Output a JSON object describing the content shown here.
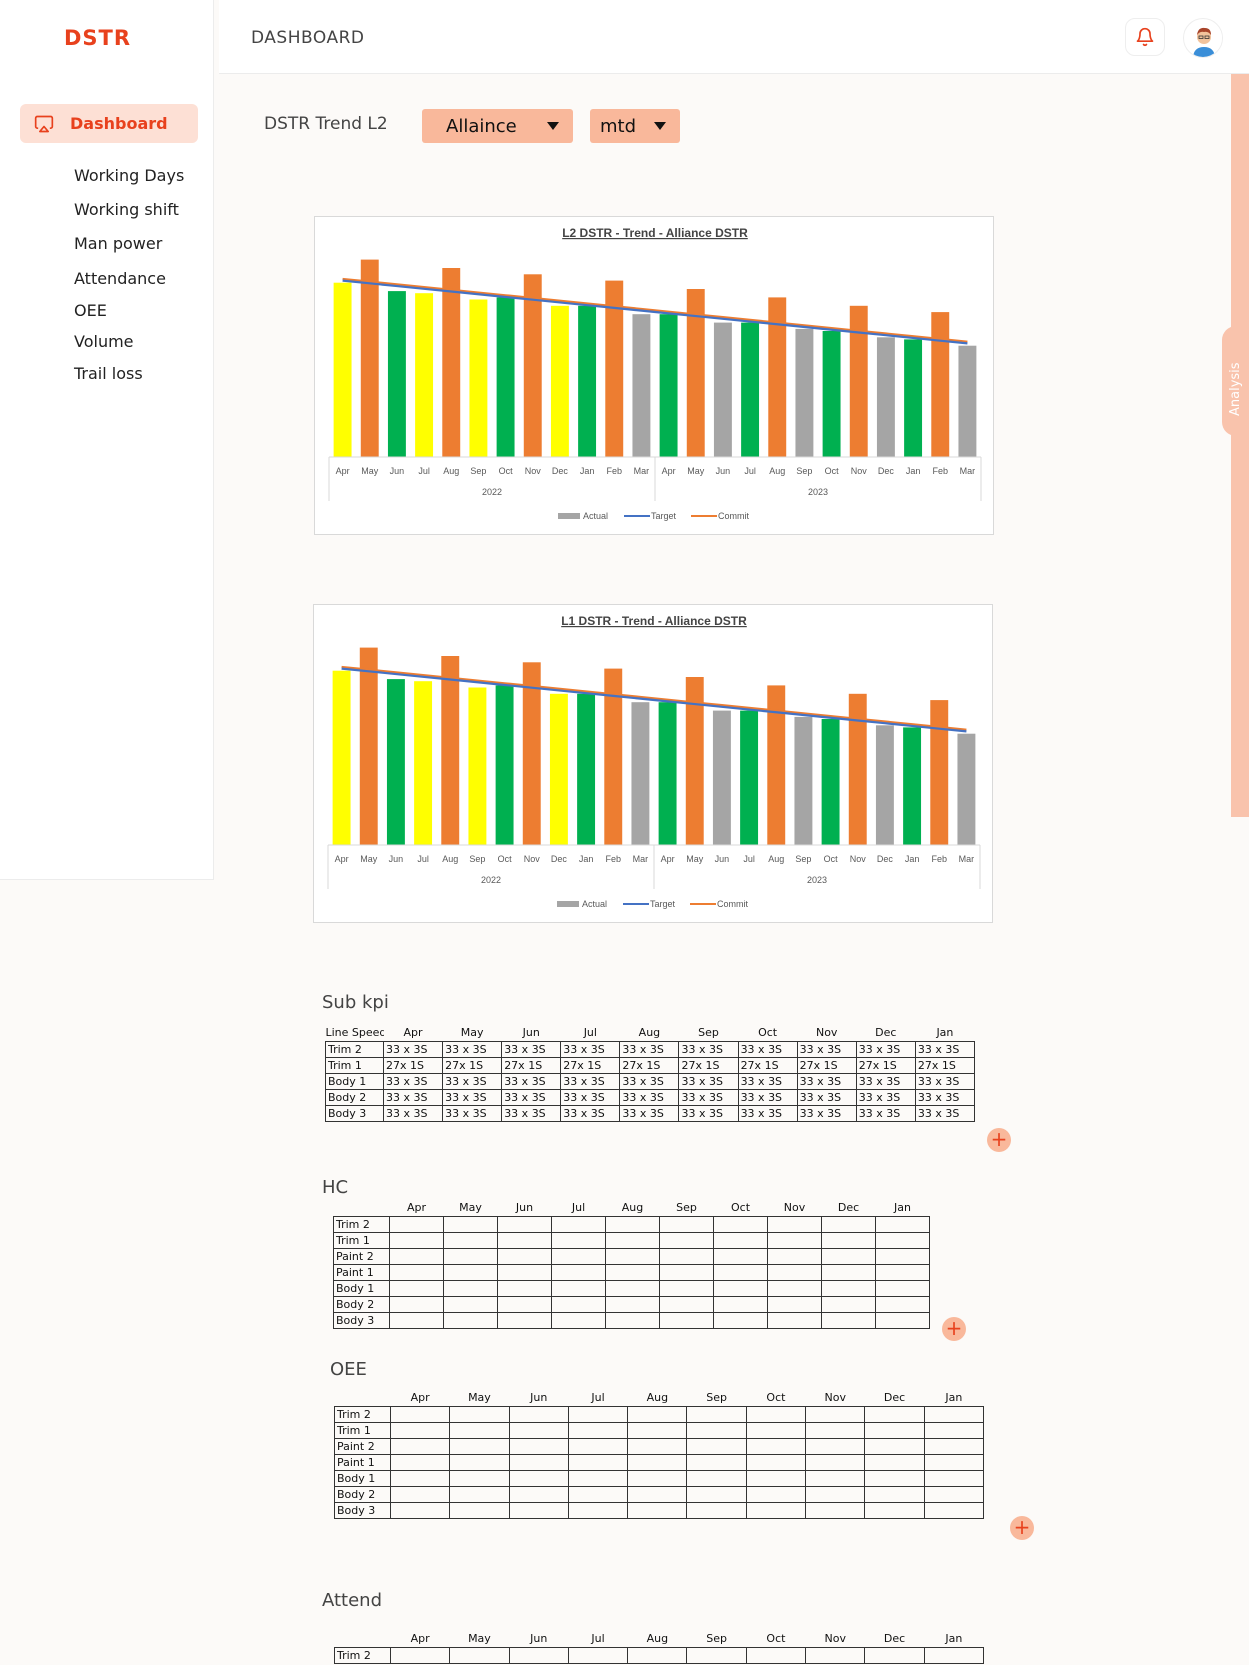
{
  "app": {
    "logo": "DSTR",
    "header_title": "DASHBOARD"
  },
  "sidebar": {
    "active": {
      "label": "Dashboard",
      "icon": "airplay-icon"
    },
    "items": [
      {
        "label": "Working Days"
      },
      {
        "label": "Working shift"
      },
      {
        "label": "Man power"
      },
      {
        "label": "Attendance"
      },
      {
        "label": "OEE"
      },
      {
        "label": "Volume"
      },
      {
        "label": "Trail loss"
      }
    ]
  },
  "analysis_tab": "Analysis",
  "filters": {
    "label": "DSTR Trend L2",
    "company": "Allaince",
    "period": "mtd"
  },
  "colors": {
    "accent": "#e8411d",
    "accent_light": "#f9b89b",
    "yellow": "#ffff00",
    "orange": "#ed7d31",
    "green": "#00b050",
    "gray": "#a5a5a5",
    "target": "#4472c4",
    "commit": "#ed7d31"
  },
  "chart_data": [
    {
      "type": "bar",
      "title": "L2 DSTR - Trend - Alliance DSTR",
      "years": [
        "2022",
        "2023"
      ],
      "categories": [
        "Apr",
        "May",
        "Jun",
        "Jul",
        "Aug",
        "Sep",
        "Oct",
        "Nov",
        "Dec",
        "Jan",
        "Feb",
        "Mar",
        "Apr",
        "May",
        "Jun",
        "Jul",
        "Aug",
        "Sep",
        "Oct",
        "Nov",
        "Dec",
        "Jan",
        "Feb",
        "Mar"
      ],
      "series": [
        {
          "name": "Actual",
          "values": [
            83,
            94,
            79,
            78,
            90,
            75,
            76,
            87,
            72,
            72,
            84,
            68,
            68,
            80,
            64,
            64,
            76,
            61,
            60,
            72,
            57,
            56,
            69,
            53
          ]
        },
        {
          "name": "Target",
          "values": [
            84,
            82.7,
            81.4,
            80.1,
            78.8,
            77.5,
            76.2,
            74.9,
            73.6,
            72.3,
            71,
            69.7,
            68.4,
            67.1,
            65.8,
            64.5,
            63.2,
            61.9,
            60.6,
            59.3,
            58,
            56.7,
            55.4,
            54.1
          ]
        },
        {
          "name": "Commit",
          "values": [
            84.8,
            83.5,
            82.2,
            80.9,
            79.6,
            78.3,
            77,
            75.7,
            74.4,
            73.1,
            71.8,
            70.5,
            69.2,
            67.9,
            66.6,
            65.3,
            64,
            62.7,
            61.4,
            60.1,
            58.8,
            57.5,
            56.2,
            54.9
          ]
        }
      ],
      "bar_colors": [
        "yellow",
        "orange",
        "green",
        "yellow",
        "orange",
        "yellow",
        "green",
        "orange",
        "yellow",
        "green",
        "orange",
        "gray",
        "green",
        "orange",
        "gray",
        "green",
        "orange",
        "gray",
        "green",
        "orange",
        "gray",
        "green",
        "orange",
        "gray"
      ],
      "ylim": [
        0,
        100
      ],
      "legend": [
        "Actual",
        "Target",
        "Commit"
      ],
      "legend_position": "bottom"
    },
    {
      "type": "bar",
      "title": "L1 DSTR - Trend - Alliance DSTR",
      "years": [
        "2022",
        "2023"
      ],
      "categories": [
        "Apr",
        "May",
        "Jun",
        "Jul",
        "Aug",
        "Sep",
        "Oct",
        "Nov",
        "Dec",
        "Jan",
        "Feb",
        "Mar",
        "Apr",
        "May",
        "Jun",
        "Jul",
        "Aug",
        "Sep",
        "Oct",
        "Nov",
        "Dec",
        "Jan",
        "Feb",
        "Mar"
      ],
      "series": [
        {
          "name": "Actual",
          "values": [
            83,
            94,
            79,
            78,
            90,
            75,
            76,
            87,
            72,
            72,
            84,
            68,
            68,
            80,
            64,
            64,
            76,
            61,
            60,
            72,
            57,
            56,
            69,
            53
          ]
        },
        {
          "name": "Target",
          "values": [
            84,
            82.7,
            81.4,
            80.1,
            78.8,
            77.5,
            76.2,
            74.9,
            73.6,
            72.3,
            71,
            69.7,
            68.4,
            67.1,
            65.8,
            64.5,
            63.2,
            61.9,
            60.6,
            59.3,
            58,
            56.7,
            55.4,
            54.1
          ]
        },
        {
          "name": "Commit",
          "values": [
            84.8,
            83.5,
            82.2,
            80.9,
            79.6,
            78.3,
            77,
            75.7,
            74.4,
            73.1,
            71.8,
            70.5,
            69.2,
            67.9,
            66.6,
            65.3,
            64,
            62.7,
            61.4,
            60.1,
            58.8,
            57.5,
            56.2,
            54.9
          ]
        }
      ],
      "bar_colors": [
        "yellow",
        "orange",
        "green",
        "yellow",
        "orange",
        "yellow",
        "green",
        "orange",
        "yellow",
        "green",
        "orange",
        "gray",
        "green",
        "orange",
        "gray",
        "green",
        "orange",
        "gray",
        "green",
        "orange",
        "gray",
        "green",
        "orange",
        "gray"
      ],
      "ylim": [
        0,
        100
      ],
      "legend": [
        "Actual",
        "Target",
        "Commit"
      ],
      "legend_position": "bottom"
    }
  ],
  "tables": {
    "subkpi": {
      "title": "Sub kpi",
      "corner": "Line Speed",
      "months": [
        "Apr",
        "May",
        "Jun",
        "Jul",
        "Aug",
        "Sep",
        "Oct",
        "Nov",
        "Dec",
        "Jan"
      ],
      "rows": [
        {
          "name": "Trim 2",
          "cells": [
            "33 x 3S",
            "33 x 3S",
            "33 x 3S",
            "33 x 3S",
            "33 x 3S",
            "33 x 3S",
            "33 x 3S",
            "33 x 3S",
            "33 x 3S",
            "33 x 3S"
          ]
        },
        {
          "name": "Trim 1",
          "cells": [
            "27x 1S",
            "27x 1S",
            "27x 1S",
            "27x 1S",
            "27x 1S",
            "27x 1S",
            "27x 1S",
            "27x 1S",
            "27x 1S",
            "27x 1S"
          ]
        },
        {
          "name": "Body 1",
          "cells": [
            "33 x 3S",
            "33 x 3S",
            "33 x 3S",
            "33 x 3S",
            "33 x 3S",
            "33 x 3S",
            "33 x 3S",
            "33 x 3S",
            "33 x 3S",
            "33 x 3S"
          ]
        },
        {
          "name": "Body 2",
          "cells": [
            "33 x 3S",
            "33 x 3S",
            "33 x 3S",
            "33 x 3S",
            "33 x 3S",
            "33 x 3S",
            "33 x 3S",
            "33 x 3S",
            "33 x 3S",
            "33 x 3S"
          ]
        },
        {
          "name": "Body 3",
          "cells": [
            "33 x 3S",
            "33 x 3S",
            "33 x 3S",
            "33 x 3S",
            "33 x 3S",
            "33 x 3S",
            "33 x 3S",
            "33 x 3S",
            "33 x 3S",
            "33 x 3S"
          ]
        }
      ]
    },
    "hc": {
      "title": "HC",
      "months": [
        "Apr",
        "May",
        "Jun",
        "Jul",
        "Aug",
        "Sep",
        "Oct",
        "Nov",
        "Dec",
        "Jan"
      ],
      "rows": [
        "Trim 2",
        "Trim 1",
        "Paint 2",
        "Paint 1",
        "Body 1",
        "Body 2",
        "Body 3"
      ]
    },
    "oee": {
      "title": "OEE",
      "months": [
        "Apr",
        "May",
        "Jun",
        "Jul",
        "Aug",
        "Sep",
        "Oct",
        "Nov",
        "Dec",
        "Jan"
      ],
      "rows": [
        "Trim 2",
        "Trim 1",
        "Paint 2",
        "Paint 1",
        "Body 1",
        "Body 2",
        "Body 3"
      ]
    },
    "attend": {
      "title": "Attend",
      "months": [
        "Apr",
        "May",
        "Jun",
        "Jul",
        "Aug",
        "Sep",
        "Oct",
        "Nov",
        "Dec",
        "Jan"
      ],
      "rows": [
        "Trim 2"
      ]
    }
  },
  "add_button": "+"
}
